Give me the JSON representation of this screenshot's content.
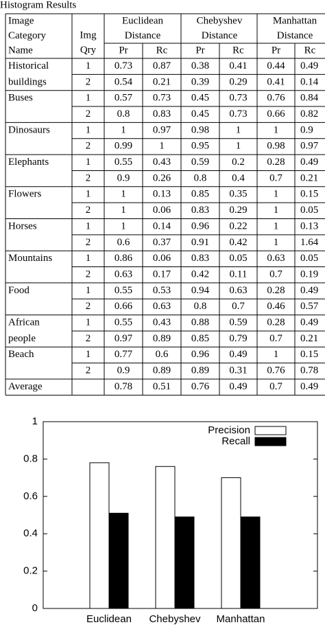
{
  "table": {
    "title": "Histogram Results",
    "header": {
      "name": [
        "Image",
        "Category",
        "Name"
      ],
      "query": [
        "Img",
        "Qry"
      ],
      "groups": [
        [
          "Euclidean",
          "Distance"
        ],
        [
          "Chebyshev",
          "Distance"
        ],
        [
          "Manhattan",
          "Distance"
        ]
      ],
      "sub": [
        "Pr",
        "Rc"
      ]
    },
    "rows": [
      {
        "name": [
          "Historical",
          "buildings"
        ],
        "rows": [
          [
            "1",
            "0.73",
            "0.87",
            "0.38",
            "0.41",
            "0.44",
            "0.49"
          ],
          [
            "2",
            "0.54",
            "0.21",
            "0.39",
            "0.29",
            "0.41",
            "0.14"
          ]
        ]
      },
      {
        "name": [
          "Buses"
        ],
        "rows": [
          [
            "1",
            "0.57",
            "0.73",
            "0.45",
            "0.73",
            "0.76",
            "0.84"
          ],
          [
            "2",
            "0.8",
            "0.83",
            "0.45",
            "0.73",
            "0.66",
            "0.82"
          ]
        ]
      },
      {
        "name": [
          "Dinosaurs"
        ],
        "rows": [
          [
            "1",
            "1",
            "0.97",
            "0.98",
            "1",
            "1",
            "0.9"
          ],
          [
            "2",
            "0.99",
            "1",
            "0.95",
            "1",
            "0.98",
            "0.97"
          ]
        ]
      },
      {
        "name": [
          "Elephants"
        ],
        "rows": [
          [
            "1",
            "0.55",
            "0.43",
            "0.59",
            "0.2",
            "0.28",
            "0.49"
          ],
          [
            "2",
            "0.9",
            "0.26",
            "0.8",
            "0.4",
            "0.7",
            "0.21"
          ]
        ]
      },
      {
        "name": [
          "Flowers"
        ],
        "rows": [
          [
            "1",
            "1",
            "0.13",
            "0.85",
            "0.35",
            "1",
            "0.15"
          ],
          [
            "2",
            "1",
            "0.06",
            "0.83",
            "0.29",
            "1",
            "0.05"
          ]
        ]
      },
      {
        "name": [
          "Horses"
        ],
        "rows": [
          [
            "1",
            "1",
            "0.14",
            "0.96",
            "0.22",
            "1",
            "0.13"
          ],
          [
            "2",
            "0.6",
            "0.37",
            "0.91",
            "0.42",
            "1",
            "1.64"
          ]
        ]
      },
      {
        "name": [
          "Mountains"
        ],
        "rows": [
          [
            "1",
            "0.86",
            "0.06",
            "0.83",
            "0.05",
            "0.63",
            "0.05"
          ],
          [
            "2",
            "0.63",
            "0.17",
            "0.42",
            "0.11",
            "0.7",
            "0.19"
          ]
        ]
      },
      {
        "name": [
          "Food"
        ],
        "rows": [
          [
            "1",
            "0.55",
            "0.53",
            "0.94",
            "0.63",
            "0.28",
            "0.49"
          ],
          [
            "2",
            "0.66",
            "0.63",
            "0.8",
            "0.7",
            "0.46",
            "0.57"
          ]
        ]
      },
      {
        "name": [
          "African",
          "people"
        ],
        "rows": [
          [
            "1",
            "0.55",
            "0.43",
            "0.88",
            "0.59",
            "0.28",
            "0.49"
          ],
          [
            "2",
            "0.97",
            "0.89",
            "0.85",
            "0.79",
            "0.7",
            "0.21"
          ]
        ]
      },
      {
        "name": [
          "Beach"
        ],
        "rows": [
          [
            "1",
            "0.77",
            "0.6",
            "0.96",
            "0.49",
            "1",
            "0.15"
          ],
          [
            "2",
            "0.9",
            "0.89",
            "0.89",
            "0.31",
            "0.76",
            "0.78"
          ]
        ]
      }
    ],
    "average": {
      "label": "Average",
      "values": [
        "0.78",
        "0.51",
        "0.76",
        "0.49",
        "0.7",
        "0.49"
      ]
    }
  },
  "chart_data": {
    "type": "bar",
    "categories": [
      "Euclidean",
      "Chebyshev",
      "Manhattan"
    ],
    "series": [
      {
        "name": "Precision",
        "color": "#ffffff",
        "values": [
          0.78,
          0.76,
          0.7
        ]
      },
      {
        "name": "Recall",
        "color": "#000000",
        "values": [
          0.51,
          0.49,
          0.49
        ]
      }
    ],
    "ylim": [
      0,
      1
    ],
    "yticks": [
      0,
      0.2,
      0.4,
      0.6,
      0.8,
      1
    ],
    "legend": "top-right"
  }
}
